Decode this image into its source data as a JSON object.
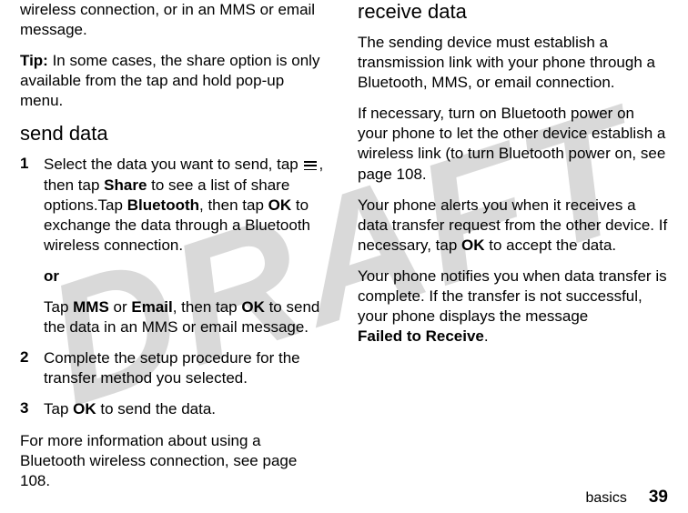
{
  "watermark": "DRAFT",
  "left_column": {
    "intro1": "wireless connection, or in an MMS or email message.",
    "tip_label": "Tip:",
    "tip_text": " In some cases, the share option is only available from the tap and hold pop-up menu.",
    "heading": "send data",
    "step1_num": "1",
    "step1a": "Select the data you want to send, tap ",
    "step1b": ", then tap ",
    "step1_share": "Share",
    "step1c": " to see a list of share options.Tap ",
    "step1_bluetooth": "Bluetooth",
    "step1d": ", then tap ",
    "step1_ok1": "OK",
    "step1e": " to exchange the data through a Bluetooth wireless connection.",
    "or": "or",
    "step1f": "Tap ",
    "step1_mms": "MMS",
    "step1g": " or ",
    "step1_email": "Email",
    "step1h": ", then tap ",
    "step1_ok2": "OK",
    "step1i": " to send the data in an MMS or email message.",
    "step2_num": "2",
    "step2": "Complete the setup procedure for the transfer method you selected.",
    "step3_num": "3",
    "step3a": "Tap ",
    "step3_ok": "OK",
    "step3b": " to send the data.",
    "closing": "For more information about using a Bluetooth wireless connection, see page 108."
  },
  "right_column": {
    "heading": "receive data",
    "p1": "The sending device must establish a transmission link with your phone through a Bluetooth, MMS, or email connection.",
    "p2": "If necessary, turn on Bluetooth power on your phone to let the other device establish a wireless link (to turn Bluetooth power on, see page 108.",
    "p3a": "Your phone alerts you when it receives a data transfer request from the other device. If necessary, tap ",
    "p3_ok": "OK",
    "p3b": " to accept the data.",
    "p4a": "Your phone notifies you when data transfer is complete. If the transfer is not successful, your phone displays the message ",
    "p4_failed": "Failed to Receive",
    "p4b": "."
  },
  "footer": {
    "label": "basics",
    "page": "39"
  }
}
